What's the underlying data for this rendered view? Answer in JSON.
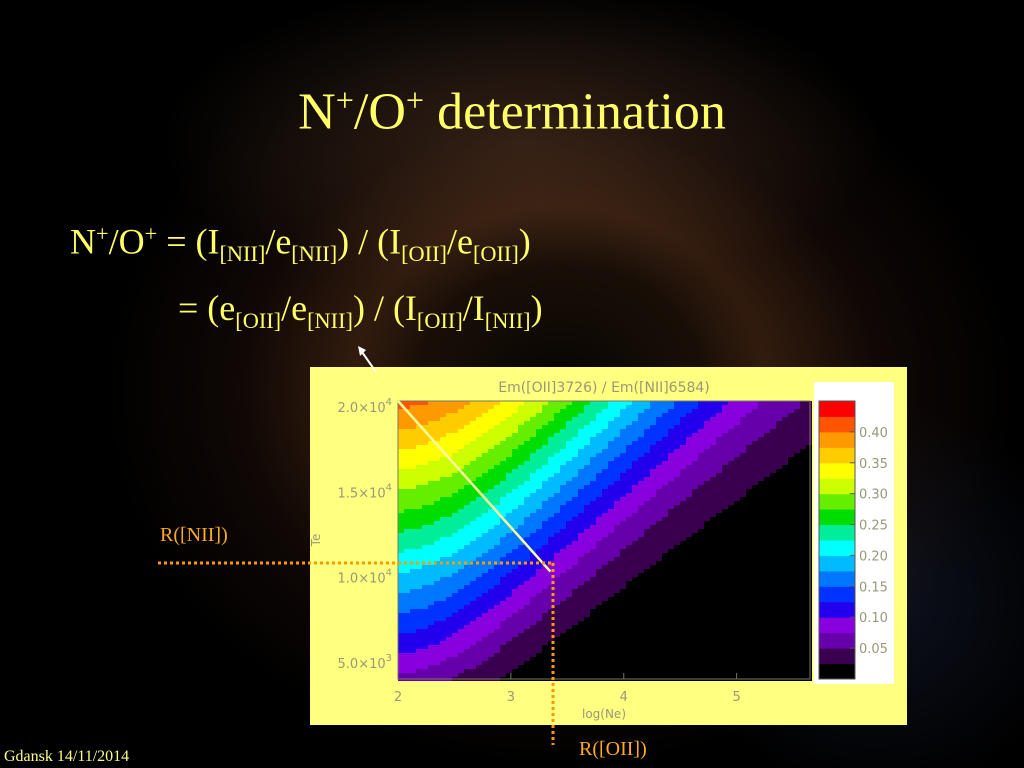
{
  "slide": {
    "title_main": "N",
    "title_sup1": "+",
    "title_mid": "/O",
    "title_sup2": "+",
    "title_end": " determination",
    "footer": "Gdansk 14/11/2014"
  },
  "equation1": {
    "lhs": "N",
    "lhs_sup1": "+",
    "lhs_mid": "/O",
    "lhs_sup2": "+",
    "t1": " = (I",
    "s1": "[NII]",
    "t2": "/e",
    "s2": "[NII]",
    "t3": ") / (I",
    "s3": "[OII]",
    "t4": "/e",
    "s4": "[OII]",
    "t5": ")"
  },
  "equation2": {
    "t1": "= (e",
    "s1": "[OII]",
    "t2": "/e",
    "s2": "[NII]",
    "t3": ") / (I",
    "s3": "[OII]",
    "t4": "/I",
    "s4": "[NII]",
    "t5": ")"
  },
  "annotations": {
    "r_nii": "R([NII])",
    "r_oii": "R([OII])"
  },
  "colors": {
    "text": "#ffff66",
    "annotation": "#ffaa22",
    "panel": "#ffff80"
  },
  "chart_data": {
    "type": "heatmap",
    "title": "Em([OII]3726) / Em([NII]6584)",
    "xlabel": "log(Ne)",
    "ylabel": "Te",
    "xlim": [
      2,
      5.65
    ],
    "ylim": [
      3700,
      20000
    ],
    "x_ticks": [
      2,
      3,
      4,
      5
    ],
    "x_tick_labels": [
      "2",
      "3",
      "4",
      "5"
    ],
    "y_ticks": [
      5000,
      10000,
      15000,
      20000
    ],
    "y_tick_labels": [
      {
        "base": "5.0×10",
        "exp": "3"
      },
      {
        "base": "1.0×10",
        "exp": "4"
      },
      {
        "base": "1.5×10",
        "exp": "4"
      },
      {
        "base": "2.0×10",
        "exp": "4"
      }
    ],
    "colorbar": {
      "ticks": [
        0.4,
        0.35,
        0.3,
        0.25,
        0.2,
        0.15,
        0.1,
        0.05
      ],
      "tick_labels": [
        "0.40",
        "0.35",
        "0.30",
        "0.25",
        "0.20",
        "0.15",
        "0.10",
        "0.05"
      ],
      "vmin": 0.0,
      "vmax": 0.45
    },
    "colormap": [
      "#000000",
      "#3a0050",
      "#6600aa",
      "#8800dd",
      "#2200ee",
      "#0033ff",
      "#0077ff",
      "#00bbff",
      "#00ffff",
      "#00ee99",
      "#00dd00",
      "#66ee00",
      "#ccff00",
      "#ffff00",
      "#ffcc00",
      "#ff9900",
      "#ff5500",
      "#ff0000"
    ],
    "diagonal_line": {
      "from": [
        2,
        20000
      ],
      "to": [
        3.35,
        10000
      ]
    },
    "marker": {
      "log_ne": 3.35,
      "te": 10000
    }
  }
}
